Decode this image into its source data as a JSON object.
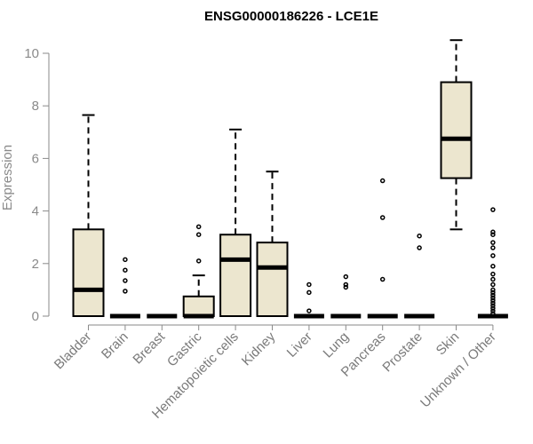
{
  "chart_data": {
    "type": "boxplot",
    "title": "ENSG00000186226 - LCE1E",
    "xlabel": "",
    "ylabel": "Expression",
    "ylim": [
      0,
      10.5
    ],
    "yticks": [
      0,
      2,
      4,
      6,
      8,
      10
    ],
    "box_fill": "#ece6cf",
    "categories": [
      "Bladder",
      "Brain",
      "Breast",
      "Gastric",
      "Hematopoietic cells",
      "Kidney",
      "Liver",
      "Lung",
      "Pancreas",
      "Prostate",
      "Skin",
      "Unknown / Other"
    ],
    "boxes": [
      {
        "whisker_low": 0,
        "q1": 0,
        "median": 1.0,
        "q3": 3.3,
        "whisker_high": 7.65,
        "outliers": []
      },
      {
        "whisker_low": 0,
        "q1": 0,
        "median": 0,
        "q3": 0,
        "whisker_high": 0,
        "outliers": [
          0.95,
          1.35,
          1.75,
          2.15
        ]
      },
      {
        "whisker_low": 0,
        "q1": 0,
        "median": 0,
        "q3": 0,
        "whisker_high": 0,
        "outliers": []
      },
      {
        "whisker_low": 0,
        "q1": 0,
        "median": 0,
        "q3": 0.75,
        "whisker_high": 1.55,
        "outliers": [
          2.1,
          3.1,
          3.4
        ]
      },
      {
        "whisker_low": 0,
        "q1": 0,
        "median": 2.15,
        "q3": 3.1,
        "whisker_high": 7.1,
        "outliers": []
      },
      {
        "whisker_low": 0,
        "q1": 0,
        "median": 1.85,
        "q3": 2.8,
        "whisker_high": 5.5,
        "outliers": []
      },
      {
        "whisker_low": 0,
        "q1": 0,
        "median": 0,
        "q3": 0,
        "whisker_high": 0,
        "outliers": [
          0.2,
          0.9,
          1.2
        ]
      },
      {
        "whisker_low": 0,
        "q1": 0,
        "median": 0,
        "q3": 0,
        "whisker_high": 0,
        "outliers": [
          1.1,
          1.2,
          1.5
        ]
      },
      {
        "whisker_low": 0,
        "q1": 0,
        "median": 0,
        "q3": 0,
        "whisker_high": 0,
        "outliers": [
          1.4,
          3.75,
          5.15
        ]
      },
      {
        "whisker_low": 0,
        "q1": 0,
        "median": 0,
        "q3": 0,
        "whisker_high": 0,
        "outliers": [
          2.6,
          3.05
        ]
      },
      {
        "whisker_low": 3.3,
        "q1": 5.25,
        "median": 6.75,
        "q3": 8.9,
        "whisker_high": 10.5,
        "outliers": []
      },
      {
        "whisker_low": 0,
        "q1": 0,
        "median": 0,
        "q3": 0,
        "whisker_high": 0,
        "outliers": [
          0.1,
          0.2,
          0.3,
          0.4,
          0.5,
          0.6,
          0.7,
          0.8,
          0.9,
          1.0,
          1.2,
          1.4,
          1.6,
          1.9,
          2.3,
          2.6,
          2.8,
          3.1,
          3.2,
          4.05
        ]
      }
    ]
  }
}
